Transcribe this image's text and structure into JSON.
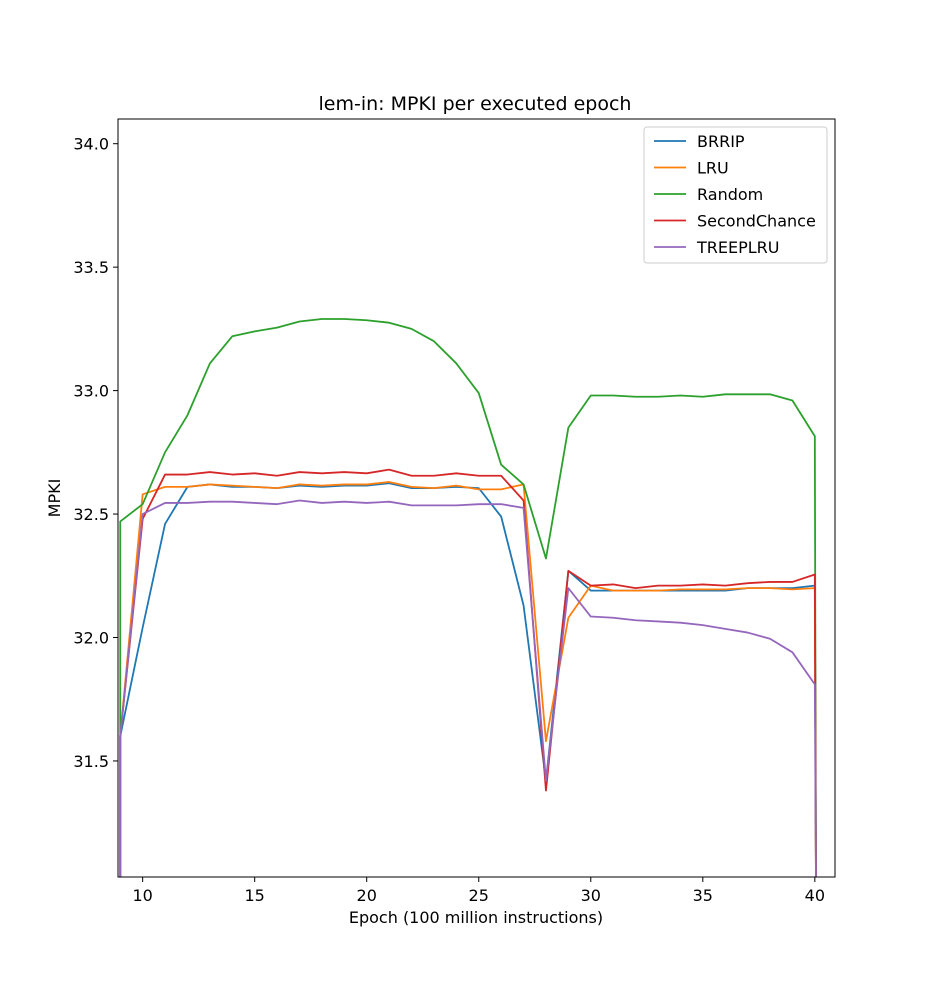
{
  "chart_data": {
    "type": "line",
    "title": "lem-in: MPKI per executed epoch",
    "xlabel": "Epoch (100 million instructions)",
    "ylabel": "MPKI",
    "xlim": [
      8.9,
      40.9
    ],
    "ylim": [
      31.03,
      34.1
    ],
    "xticks": [
      10,
      15,
      20,
      25,
      30,
      35,
      40
    ],
    "yticks": [
      31.5,
      32.0,
      32.5,
      33.0,
      33.5,
      34.0
    ],
    "xtick_labels": [
      "10",
      "15",
      "20",
      "25",
      "30",
      "35",
      "40"
    ],
    "ytick_labels": [
      "31.5",
      "32.0",
      "32.5",
      "33.0",
      "33.5",
      "34.0"
    ],
    "grid": false,
    "legend_position": "top-right",
    "x": [
      9,
      10,
      11,
      12,
      13,
      14,
      15,
      16,
      17,
      18,
      19,
      20,
      21,
      22,
      23,
      24,
      25,
      26,
      27,
      28,
      29,
      30,
      31,
      32,
      33,
      34,
      35,
      36,
      37,
      38,
      39,
      40
    ],
    "series": [
      {
        "name": "BRRIP",
        "color": "#1f77b4",
        "start": [
          9,
          31.0
        ],
        "values": [
          31.6,
          32.04,
          32.46,
          32.61,
          32.62,
          32.61,
          32.61,
          32.605,
          32.615,
          32.61,
          32.615,
          32.615,
          32.625,
          32.605,
          32.605,
          32.61,
          32.605,
          32.49,
          32.13,
          31.42,
          32.27,
          32.19,
          32.19,
          32.19,
          32.19,
          32.19,
          32.19,
          32.19,
          32.2,
          32.2,
          32.2,
          32.21
        ],
        "end": [
          40.05,
          31.03
        ]
      },
      {
        "name": "LRU",
        "color": "#ff7f0e",
        "start": [
          9,
          31.0
        ],
        "values": [
          31.6,
          32.58,
          32.61,
          32.61,
          32.62,
          32.615,
          32.61,
          32.605,
          32.62,
          32.615,
          32.62,
          32.62,
          32.63,
          32.61,
          32.605,
          32.615,
          32.6,
          32.6,
          32.62,
          31.58,
          32.08,
          32.21,
          32.19,
          32.19,
          32.19,
          32.195,
          32.195,
          32.195,
          32.2,
          32.2,
          32.195,
          32.2
        ],
        "end": [
          40.05,
          31.03
        ]
      },
      {
        "name": "Random",
        "color": "#2ca02c",
        "start": [
          9,
          31.0
        ],
        "values": [
          32.47,
          32.54,
          32.75,
          32.9,
          33.11,
          33.22,
          33.24,
          33.255,
          33.28,
          33.29,
          33.29,
          33.285,
          33.275,
          33.25,
          33.2,
          33.11,
          32.99,
          32.7,
          32.62,
          32.32,
          32.85,
          32.98,
          32.98,
          32.975,
          32.975,
          32.98,
          32.975,
          32.985,
          32.985,
          32.985,
          32.96,
          32.815
        ],
        "end": [
          40.05,
          31.03
        ]
      },
      {
        "name": "SecondChance",
        "color": "#d62728",
        "start": [
          9,
          31.0
        ],
        "values": [
          31.6,
          32.48,
          32.66,
          32.66,
          32.67,
          32.66,
          32.665,
          32.655,
          32.67,
          32.665,
          32.67,
          32.665,
          32.68,
          32.655,
          32.655,
          32.665,
          32.655,
          32.655,
          32.555,
          31.38,
          32.27,
          32.21,
          32.215,
          32.2,
          32.21,
          32.21,
          32.215,
          32.21,
          32.22,
          32.225,
          32.225,
          32.255
        ],
        "end": [
          40.05,
          31.03
        ]
      },
      {
        "name": "TREEPLRU",
        "color": "#9467bd",
        "start": [
          9,
          31.0
        ],
        "values": [
          31.6,
          32.5,
          32.545,
          32.545,
          32.55,
          32.55,
          32.545,
          32.54,
          32.555,
          32.545,
          32.55,
          32.545,
          32.55,
          32.535,
          32.535,
          32.535,
          32.54,
          32.54,
          32.525,
          31.42,
          32.2,
          32.085,
          32.08,
          32.07,
          32.065,
          32.06,
          32.05,
          32.035,
          32.02,
          31.995,
          31.94,
          31.81
        ],
        "end": [
          40.05,
          31.03
        ]
      }
    ]
  }
}
